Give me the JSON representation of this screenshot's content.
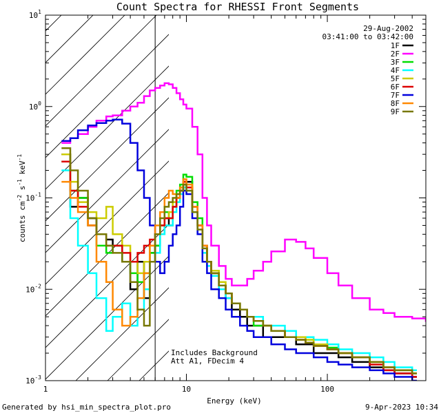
{
  "chart_data": {
    "type": "line",
    "title": "Count Spectra for RHESSI Front Segments",
    "xlabel": "Energy (keV)",
    "ylabel": "counts cm^-2 s^-1 keV^-1",
    "xscale": "log",
    "yscale": "log",
    "xlim": [
      1,
      500
    ],
    "ylim": [
      0.001,
      10
    ],
    "x_ticks": [
      {
        "v": 1,
        "label": "1"
      },
      {
        "v": 10,
        "label": "10"
      },
      {
        "v": 100,
        "label": "100"
      }
    ],
    "y_ticks": [
      {
        "v": 0.001,
        "base": "10",
        "exp": "-3"
      },
      {
        "v": 0.01,
        "base": "10",
        "exp": "-2"
      },
      {
        "v": 0.1,
        "base": "10",
        "exp": "-1"
      },
      {
        "v": 1,
        "base": "10",
        "exp": "0"
      },
      {
        "v": 10,
        "base": "10",
        "exp": "1"
      }
    ],
    "date": "29-Aug-2002",
    "time_range": "03:41:00 to 03:42:00",
    "shaded_region_upper_keV": 6,
    "annotation_line1": "Includes Background",
    "annotation_line2": "Att A1, FDecim 4",
    "series": [
      {
        "name": "1F",
        "color": "#000000",
        "x": [
          1.3,
          1.5,
          1.7,
          2.0,
          2.3,
          2.7,
          3.0,
          3.5,
          4.0,
          4.5,
          5.0,
          5.5,
          6.0,
          6.5,
          7.0,
          7.5,
          8.0,
          8.5,
          9.0,
          9.5,
          10.0,
          11,
          12,
          13,
          14,
          15,
          17,
          19,
          21,
          24,
          27,
          30,
          35,
          40,
          50,
          60,
          70,
          80,
          100,
          120,
          150,
          200,
          250,
          300,
          400
        ],
        "y": [
          0.3,
          0.08,
          0.1,
          0.06,
          0.04,
          0.035,
          0.03,
          0.02,
          0.01,
          0.02,
          0.008,
          0.025,
          0.03,
          0.04,
          0.06,
          0.05,
          0.08,
          0.1,
          0.12,
          0.14,
          0.15,
          0.08,
          0.05,
          0.03,
          0.02,
          0.015,
          0.01,
          0.008,
          0.006,
          0.005,
          0.004,
          0.004,
          0.003,
          0.003,
          0.003,
          0.0025,
          0.0025,
          0.002,
          0.002,
          0.0018,
          0.0016,
          0.0014,
          0.0013,
          0.0012,
          0.0011
        ]
      },
      {
        "name": "2F",
        "color": "#ff00ff",
        "x": [
          1.3,
          1.5,
          1.7,
          2.0,
          2.3,
          2.7,
          3.0,
          3.5,
          4.0,
          4.5,
          5.0,
          5.5,
          6.0,
          6.5,
          7.0,
          7.5,
          8.0,
          8.5,
          9.0,
          9.5,
          10.0,
          11,
          12,
          13,
          14,
          15,
          17,
          19,
          21,
          24,
          27,
          30,
          35,
          40,
          50,
          60,
          70,
          80,
          100,
          120,
          150,
          200,
          250,
          300,
          400,
          500
        ],
        "y": [
          0.4,
          0.45,
          0.5,
          0.6,
          0.7,
          0.78,
          0.8,
          0.9,
          1.0,
          1.1,
          1.3,
          1.5,
          1.6,
          1.7,
          1.8,
          1.75,
          1.6,
          1.4,
          1.2,
          1.05,
          0.95,
          0.6,
          0.3,
          0.1,
          0.05,
          0.03,
          0.018,
          0.013,
          0.011,
          0.011,
          0.013,
          0.016,
          0.02,
          0.026,
          0.035,
          0.033,
          0.028,
          0.022,
          0.015,
          0.011,
          0.008,
          0.006,
          0.0055,
          0.005,
          0.0048,
          0.0045
        ]
      },
      {
        "name": "3F",
        "color": "#00dd00",
        "x": [
          1.3,
          1.5,
          1.7,
          2.0,
          2.3,
          2.7,
          3.0,
          3.5,
          4.0,
          4.5,
          5.0,
          5.5,
          6.0,
          6.5,
          7.0,
          7.5,
          8.0,
          8.5,
          9.0,
          9.5,
          10.0,
          11,
          12,
          13,
          14,
          15,
          17,
          19,
          21,
          24,
          27,
          30,
          35,
          40,
          50,
          60,
          70,
          80,
          100,
          120,
          150,
          200,
          250,
          300,
          400
        ],
        "y": [
          0.25,
          0.12,
          0.1,
          0.05,
          0.03,
          0.025,
          0.03,
          0.02,
          0.015,
          0.012,
          0.015,
          0.025,
          0.03,
          0.05,
          0.07,
          0.06,
          0.09,
          0.12,
          0.14,
          0.18,
          0.17,
          0.09,
          0.06,
          0.03,
          0.02,
          0.015,
          0.011,
          0.009,
          0.007,
          0.006,
          0.005,
          0.004,
          0.004,
          0.0035,
          0.003,
          0.003,
          0.0028,
          0.0025,
          0.0023,
          0.002,
          0.0018,
          0.0016,
          0.0014,
          0.0013,
          0.0012
        ]
      },
      {
        "name": "4F",
        "color": "#00ffff",
        "x": [
          1.3,
          1.5,
          1.7,
          2.0,
          2.3,
          2.7,
          3.0,
          3.5,
          4.0,
          4.5,
          5.0,
          5.5,
          6.0,
          6.5,
          7.0,
          7.5,
          8.0,
          8.5,
          9.0,
          9.5,
          10.0,
          11,
          12,
          13,
          14,
          15,
          17,
          19,
          21,
          24,
          27,
          30,
          35,
          40,
          50,
          60,
          70,
          80,
          100,
          120,
          150,
          200,
          250,
          300,
          400
        ],
        "y": [
          0.2,
          0.06,
          0.03,
          0.015,
          0.008,
          0.0035,
          0.005,
          0.007,
          0.004,
          0.006,
          0.01,
          0.02,
          0.025,
          0.04,
          0.05,
          0.05,
          0.07,
          0.09,
          0.11,
          0.13,
          0.12,
          0.07,
          0.04,
          0.025,
          0.018,
          0.014,
          0.01,
          0.008,
          0.007,
          0.006,
          0.005,
          0.005,
          0.004,
          0.004,
          0.0035,
          0.003,
          0.003,
          0.0028,
          0.0025,
          0.0022,
          0.002,
          0.0018,
          0.0016,
          0.0014,
          0.0013
        ]
      },
      {
        "name": "5F",
        "color": "#cccc00",
        "x": [
          1.3,
          1.5,
          1.7,
          2.0,
          2.3,
          2.7,
          3.0,
          3.5,
          4.0,
          4.5,
          5.0,
          5.5,
          6.0,
          6.5,
          7.0,
          7.5,
          8.0,
          8.5,
          9.0,
          9.5,
          10.0,
          11,
          12,
          13,
          14,
          15,
          17,
          19,
          21,
          24,
          27,
          30,
          35,
          40,
          50,
          60,
          70,
          80,
          100,
          120,
          150,
          200,
          250,
          300,
          400
        ],
        "y": [
          0.3,
          0.15,
          0.09,
          0.07,
          0.06,
          0.08,
          0.04,
          0.03,
          0.02,
          0.015,
          0.02,
          0.03,
          0.04,
          0.05,
          0.06,
          0.07,
          0.09,
          0.11,
          0.13,
          0.15,
          0.14,
          0.08,
          0.05,
          0.03,
          0.02,
          0.016,
          0.012,
          0.009,
          0.007,
          0.006,
          0.005,
          0.0045,
          0.004,
          0.0035,
          0.003,
          0.003,
          0.0028,
          0.0025,
          0.0022,
          0.002,
          0.0018,
          0.0016,
          0.0014,
          0.0013,
          0.0012
        ]
      },
      {
        "name": "6F",
        "color": "#dd0000",
        "x": [
          1.3,
          1.5,
          1.7,
          2.0,
          2.3,
          2.7,
          3.0,
          3.5,
          4.0,
          4.5,
          5.0,
          5.5,
          6.0,
          6.5,
          7.0,
          7.5,
          8.0,
          8.5,
          9.0,
          9.5,
          10.0,
          11,
          12,
          13,
          14,
          15,
          17,
          19,
          21,
          24,
          27,
          30,
          35,
          40,
          50,
          60,
          70,
          80,
          100,
          120,
          150,
          200,
          250,
          300,
          400
        ],
        "y": [
          0.25,
          0.12,
          0.08,
          0.05,
          0.04,
          0.03,
          0.03,
          0.025,
          0.02,
          0.025,
          0.03,
          0.035,
          0.04,
          0.05,
          0.06,
          0.06,
          0.08,
          0.1,
          0.12,
          0.15,
          0.13,
          0.08,
          0.05,
          0.03,
          0.02,
          0.015,
          0.011,
          0.009,
          0.007,
          0.006,
          0.005,
          0.0045,
          0.004,
          0.0035,
          0.003,
          0.0028,
          0.0026,
          0.0024,
          0.0022,
          0.002,
          0.0018,
          0.0015,
          0.0013,
          0.0012,
          0.0011
        ]
      },
      {
        "name": "7F",
        "color": "#0000dd",
        "x": [
          1.3,
          1.5,
          1.7,
          2.0,
          2.3,
          2.7,
          3.0,
          3.5,
          4.0,
          4.5,
          5.0,
          5.5,
          6.0,
          6.5,
          7.0,
          7.5,
          8.0,
          8.5,
          9.0,
          9.5,
          10.0,
          11,
          12,
          13,
          14,
          15,
          17,
          19,
          21,
          24,
          27,
          30,
          35,
          40,
          50,
          60,
          70,
          80,
          100,
          120,
          150,
          200,
          250,
          300,
          400
        ],
        "y": [
          0.42,
          0.45,
          0.55,
          0.62,
          0.66,
          0.7,
          0.72,
          0.65,
          0.4,
          0.2,
          0.1,
          0.05,
          0.02,
          0.015,
          0.02,
          0.03,
          0.04,
          0.05,
          0.08,
          0.12,
          0.11,
          0.06,
          0.04,
          0.02,
          0.015,
          0.01,
          0.008,
          0.006,
          0.005,
          0.004,
          0.0035,
          0.003,
          0.003,
          0.0025,
          0.0022,
          0.002,
          0.002,
          0.0018,
          0.0016,
          0.0015,
          0.0014,
          0.0013,
          0.0012,
          0.0011,
          0.001
        ]
      },
      {
        "name": "8F",
        "color": "#ff8800",
        "x": [
          1.3,
          1.5,
          1.7,
          2.0,
          2.3,
          2.7,
          3.0,
          3.5,
          4.0,
          4.5,
          5.0,
          5.5,
          6.0,
          6.5,
          7.0,
          7.5,
          8.0,
          8.5,
          9.0,
          9.5,
          10.0,
          11,
          12,
          13,
          14,
          15,
          17,
          19,
          21,
          24,
          27,
          30,
          35,
          40,
          50,
          60,
          70,
          80,
          100,
          120,
          150,
          200,
          250,
          300,
          400
        ],
        "y": [
          0.15,
          0.1,
          0.07,
          0.05,
          0.02,
          0.012,
          0.006,
          0.004,
          0.005,
          0.008,
          0.015,
          0.03,
          0.05,
          0.07,
          0.1,
          0.12,
          0.11,
          0.1,
          0.13,
          0.16,
          0.14,
          0.08,
          0.05,
          0.03,
          0.02,
          0.015,
          0.011,
          0.009,
          0.007,
          0.006,
          0.005,
          0.0045,
          0.004,
          0.0035,
          0.003,
          0.0028,
          0.0026,
          0.0024,
          0.0022,
          0.002,
          0.0018,
          0.0016,
          0.0014,
          0.0013,
          0.0012
        ]
      },
      {
        "name": "9F",
        "color": "#777700",
        "x": [
          1.3,
          1.5,
          1.7,
          2.0,
          2.3,
          2.7,
          3.0,
          3.5,
          4.0,
          4.5,
          5.0,
          5.5,
          6.0,
          6.5,
          7.0,
          7.5,
          8.0,
          8.5,
          9.0,
          9.5,
          10.0,
          11,
          12,
          13,
          14,
          15,
          17,
          19,
          21,
          24,
          27,
          30,
          35,
          40,
          50,
          60,
          70,
          80,
          100,
          120,
          150,
          200,
          250,
          300,
          400
        ],
        "y": [
          0.35,
          0.2,
          0.12,
          0.06,
          0.04,
          0.03,
          0.025,
          0.02,
          0.012,
          0.006,
          0.004,
          0.02,
          0.04,
          0.06,
          0.08,
          0.09,
          0.1,
          0.11,
          0.12,
          0.14,
          0.12,
          0.07,
          0.045,
          0.028,
          0.02,
          0.015,
          0.011,
          0.009,
          0.007,
          0.006,
          0.005,
          0.0045,
          0.004,
          0.0035,
          0.003,
          0.0028,
          0.0026,
          0.0024,
          0.0022,
          0.002,
          0.0018,
          0.0016,
          0.0014,
          0.0013,
          0.0012
        ]
      }
    ]
  },
  "footer": {
    "generated_by": "Generated by hsi_min_spectra_plot.pro",
    "timestamp": "9-Apr-2023 10:34"
  }
}
